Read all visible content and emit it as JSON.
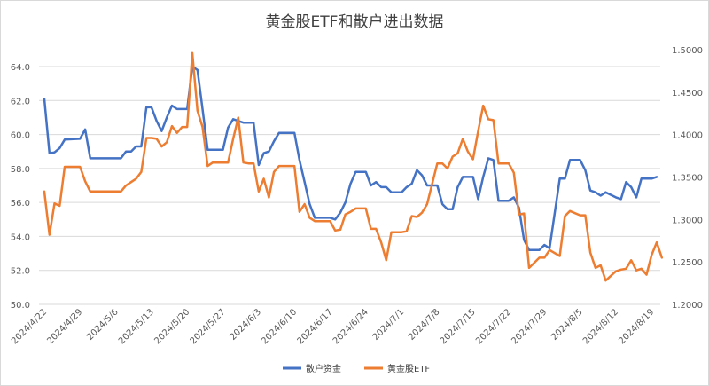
{
  "chart_data": {
    "type": "line",
    "title": "黄金股ETF和散户进出数据",
    "xlabel": "",
    "ylabel": "",
    "y_left": {
      "min": 50.0,
      "max": 64.0,
      "step": 2.0,
      "ticks": [
        "50.0",
        "52.0",
        "54.0",
        "56.0",
        "58.0",
        "60.0",
        "62.0",
        "64.0"
      ]
    },
    "y_right": {
      "min": 1.2,
      "max": 1.5,
      "step": 0.05,
      "ticks": [
        "1.2000",
        "1.2500",
        "1.3000",
        "1.3500",
        "1.4000",
        "1.4500",
        "1.5000"
      ]
    },
    "x_labels": [
      "2024/4/22",
      "2024/4/29",
      "2024/5/6",
      "2024/5/13",
      "2024/5/20",
      "2024/5/27",
      "2024/6/3",
      "2024/6/10",
      "2024/6/17",
      "2024/6/24",
      "2024/7/1",
      "2024/7/8",
      "2024/7/15",
      "2024/7/22",
      "2024/7/29",
      "2024/8/5",
      "2024/8/12",
      "2024/8/19"
    ],
    "x_start": "2024/4/22",
    "x_end": "2024/8/20",
    "grid": true,
    "legend": "bottom",
    "series": [
      {
        "name": "散户资金",
        "axis": "left",
        "color": "#4472C4",
        "points": [
          [
            "2024/4/22",
            62.1
          ],
          [
            "2024/4/23",
            58.9
          ],
          [
            "2024/4/24",
            58.95
          ],
          [
            "2024/4/25",
            59.2
          ],
          [
            "2024/4/26",
            59.7
          ],
          [
            "2024/4/29",
            59.75
          ],
          [
            "2024/4/30",
            60.3
          ],
          [
            "2024/5/1",
            58.6
          ],
          [
            "2024/5/2",
            58.6
          ],
          [
            "2024/5/3",
            58.6
          ],
          [
            "2024/5/6",
            58.6
          ],
          [
            "2024/5/7",
            58.6
          ],
          [
            "2024/5/8",
            59.0
          ],
          [
            "2024/5/9",
            59.0
          ],
          [
            "2024/5/10",
            59.3
          ],
          [
            "2024/5/11",
            59.3
          ],
          [
            "2024/5/12",
            61.6
          ],
          [
            "2024/5/13",
            61.6
          ],
          [
            "2024/5/14",
            60.8
          ],
          [
            "2024/5/15",
            60.2
          ],
          [
            "2024/5/16",
            61.0
          ],
          [
            "2024/5/17",
            61.7
          ],
          [
            "2024/5/18",
            61.5
          ],
          [
            "2024/5/19",
            61.5
          ],
          [
            "2024/5/20",
            61.5
          ],
          [
            "2024/5/21",
            64.0
          ],
          [
            "2024/5/22",
            63.8
          ],
          [
            "2024/5/23",
            61.5
          ],
          [
            "2024/5/24",
            59.1
          ],
          [
            "2024/5/25",
            59.1
          ],
          [
            "2024/5/27",
            59.1
          ],
          [
            "2024/5/28",
            60.4
          ],
          [
            "2024/5/29",
            60.9
          ],
          [
            "2024/5/30",
            60.8
          ],
          [
            "2024/5/31",
            60.7
          ],
          [
            "2024/6/1",
            60.7
          ],
          [
            "2024/6/2",
            60.7
          ],
          [
            "2024/6/3",
            58.2
          ],
          [
            "2024/6/4",
            58.9
          ],
          [
            "2024/6/5",
            59.0
          ],
          [
            "2024/6/6",
            59.6
          ],
          [
            "2024/6/7",
            60.1
          ],
          [
            "2024/6/8",
            60.1
          ],
          [
            "2024/6/9",
            60.1
          ],
          [
            "2024/6/10",
            60.1
          ],
          [
            "2024/6/11",
            58.5
          ],
          [
            "2024/6/12",
            57.2
          ],
          [
            "2024/6/13",
            55.9
          ],
          [
            "2024/6/14",
            55.1
          ],
          [
            "2024/6/15",
            55.1
          ],
          [
            "2024/6/17",
            55.1
          ],
          [
            "2024/6/18",
            55.0
          ],
          [
            "2024/6/19",
            55.4
          ],
          [
            "2024/6/20",
            56.0
          ],
          [
            "2024/6/21",
            57.1
          ],
          [
            "2024/6/22",
            57.8
          ],
          [
            "2024/6/24",
            57.8
          ],
          [
            "2024/6/25",
            57.0
          ],
          [
            "2024/6/26",
            57.2
          ],
          [
            "2024/6/27",
            56.9
          ],
          [
            "2024/6/28",
            56.9
          ],
          [
            "2024/6/29",
            56.6
          ],
          [
            "2024/7/1",
            56.6
          ],
          [
            "2024/7/2",
            56.9
          ],
          [
            "2024/7/3",
            57.1
          ],
          [
            "2024/7/4",
            57.9
          ],
          [
            "2024/7/5",
            57.6
          ],
          [
            "2024/7/6",
            57.0
          ],
          [
            "2024/7/8",
            57.0
          ],
          [
            "2024/7/9",
            55.9
          ],
          [
            "2024/7/10",
            55.6
          ],
          [
            "2024/7/11",
            55.6
          ],
          [
            "2024/7/12",
            56.9
          ],
          [
            "2024/7/13",
            57.5
          ],
          [
            "2024/7/14",
            57.5
          ],
          [
            "2024/7/15",
            57.5
          ],
          [
            "2024/7/16",
            56.2
          ],
          [
            "2024/7/17",
            57.5
          ],
          [
            "2024/7/18",
            58.6
          ],
          [
            "2024/7/19",
            58.5
          ],
          [
            "2024/7/20",
            56.1
          ],
          [
            "2024/7/22",
            56.1
          ],
          [
            "2024/7/23",
            56.3
          ],
          [
            "2024/7/24",
            55.7
          ],
          [
            "2024/7/25",
            53.8
          ],
          [
            "2024/7/26",
            53.2
          ],
          [
            "2024/7/28",
            53.2
          ],
          [
            "2024/7/29",
            53.5
          ],
          [
            "2024/7/30",
            53.3
          ],
          [
            "2024/8/1",
            57.4
          ],
          [
            "2024/8/2",
            57.4
          ],
          [
            "2024/8/3",
            58.5
          ],
          [
            "2024/8/5",
            58.5
          ],
          [
            "2024/8/6",
            57.9
          ],
          [
            "2024/8/7",
            56.7
          ],
          [
            "2024/8/8",
            56.6
          ],
          [
            "2024/8/9",
            56.4
          ],
          [
            "2024/8/10",
            56.6
          ],
          [
            "2024/8/12",
            56.3
          ],
          [
            "2024/8/13",
            56.2
          ],
          [
            "2024/8/14",
            57.2
          ],
          [
            "2024/8/15",
            56.9
          ],
          [
            "2024/8/16",
            56.3
          ],
          [
            "2024/8/17",
            57.4
          ],
          [
            "2024/8/18",
            57.4
          ],
          [
            "2024/8/19",
            57.4
          ],
          [
            "2024/8/20",
            57.5
          ]
        ]
      },
      {
        "name": "黄金股ETF",
        "axis": "right",
        "color": "#ED7D31",
        "points": [
          [
            "2024/4/22",
            1.333
          ],
          [
            "2024/4/23",
            1.282
          ],
          [
            "2024/4/24",
            1.319
          ],
          [
            "2024/4/25",
            1.316
          ],
          [
            "2024/4/26",
            1.362
          ],
          [
            "2024/4/29",
            1.362
          ],
          [
            "2024/4/30",
            1.345
          ],
          [
            "2024/5/1",
            1.333
          ],
          [
            "2024/5/2",
            1.333
          ],
          [
            "2024/5/3",
            1.333
          ],
          [
            "2024/5/6",
            1.333
          ],
          [
            "2024/5/7",
            1.333
          ],
          [
            "2024/5/8",
            1.34
          ],
          [
            "2024/5/9",
            1.344
          ],
          [
            "2024/5/10",
            1.348
          ],
          [
            "2024/5/11",
            1.356
          ],
          [
            "2024/5/12",
            1.396
          ],
          [
            "2024/5/13",
            1.396
          ],
          [
            "2024/5/14",
            1.395
          ],
          [
            "2024/5/15",
            1.386
          ],
          [
            "2024/5/16",
            1.391
          ],
          [
            "2024/5/17",
            1.41
          ],
          [
            "2024/5/18",
            1.402
          ],
          [
            "2024/5/19",
            1.409
          ],
          [
            "2024/5/20",
            1.409
          ],
          [
            "2024/5/21",
            1.496
          ],
          [
            "2024/5/22",
            1.428
          ],
          [
            "2024/5/23",
            1.409
          ],
          [
            "2024/5/24",
            1.363
          ],
          [
            "2024/5/25",
            1.367
          ],
          [
            "2024/5/27",
            1.367
          ],
          [
            "2024/5/28",
            1.367
          ],
          [
            "2024/5/29",
            1.395
          ],
          [
            "2024/5/30",
            1.42
          ],
          [
            "2024/5/31",
            1.367
          ],
          [
            "2024/6/1",
            1.366
          ],
          [
            "2024/6/2",
            1.366
          ],
          [
            "2024/6/3",
            1.333
          ],
          [
            "2024/6/4",
            1.348
          ],
          [
            "2024/6/5",
            1.326
          ],
          [
            "2024/6/6",
            1.356
          ],
          [
            "2024/6/7",
            1.363
          ],
          [
            "2024/6/8",
            1.363
          ],
          [
            "2024/6/9",
            1.363
          ],
          [
            "2024/6/10",
            1.363
          ],
          [
            "2024/6/11",
            1.309
          ],
          [
            "2024/6/12",
            1.318
          ],
          [
            "2024/6/13",
            1.302
          ],
          [
            "2024/6/14",
            1.298
          ],
          [
            "2024/6/15",
            1.298
          ],
          [
            "2024/6/17",
            1.298
          ],
          [
            "2024/6/18",
            1.287
          ],
          [
            "2024/6/19",
            1.288
          ],
          [
            "2024/6/20",
            1.306
          ],
          [
            "2024/6/21",
            1.309
          ],
          [
            "2024/6/22",
            1.313
          ],
          [
            "2024/6/24",
            1.313
          ],
          [
            "2024/6/25",
            1.289
          ],
          [
            "2024/6/26",
            1.289
          ],
          [
            "2024/6/27",
            1.273
          ],
          [
            "2024/6/28",
            1.252
          ],
          [
            "2024/6/29",
            1.285
          ],
          [
            "2024/7/1",
            1.285
          ],
          [
            "2024/7/2",
            1.286
          ],
          [
            "2024/7/3",
            1.304
          ],
          [
            "2024/7/4",
            1.303
          ],
          [
            "2024/7/5",
            1.308
          ],
          [
            "2024/7/6",
            1.318
          ],
          [
            "2024/7/8",
            1.366
          ],
          [
            "2024/7/9",
            1.366
          ],
          [
            "2024/7/10",
            1.36
          ],
          [
            "2024/7/11",
            1.374
          ],
          [
            "2024/7/12",
            1.378
          ],
          [
            "2024/7/13",
            1.395
          ],
          [
            "2024/7/14",
            1.38
          ],
          [
            "2024/7/15",
            1.371
          ],
          [
            "2024/7/16",
            1.404
          ],
          [
            "2024/7/17",
            1.434
          ],
          [
            "2024/7/18",
            1.418
          ],
          [
            "2024/7/19",
            1.417
          ],
          [
            "2024/7/20",
            1.366
          ],
          [
            "2024/7/22",
            1.366
          ],
          [
            "2024/7/23",
            1.355
          ],
          [
            "2024/7/24",
            1.306
          ],
          [
            "2024/7/25",
            1.307
          ],
          [
            "2024/7/26",
            1.243
          ],
          [
            "2024/7/28",
            1.255
          ],
          [
            "2024/7/29",
            1.255
          ],
          [
            "2024/7/30",
            1.264
          ],
          [
            "2024/8/1",
            1.257
          ],
          [
            "2024/8/2",
            1.304
          ],
          [
            "2024/8/3",
            1.31
          ],
          [
            "2024/8/5",
            1.305
          ],
          [
            "2024/8/6",
            1.305
          ],
          [
            "2024/8/7",
            1.261
          ],
          [
            "2024/8/8",
            1.243
          ],
          [
            "2024/8/9",
            1.246
          ],
          [
            "2024/8/10",
            1.228
          ],
          [
            "2024/8/12",
            1.239
          ],
          [
            "2024/8/13",
            1.241
          ],
          [
            "2024/8/14",
            1.242
          ],
          [
            "2024/8/15",
            1.252
          ],
          [
            "2024/8/16",
            1.24
          ],
          [
            "2024/8/17",
            1.242
          ],
          [
            "2024/8/18",
            1.235
          ],
          [
            "2024/8/19",
            1.258
          ],
          [
            "2024/8/20",
            1.273
          ],
          [
            "2024/8/21",
            1.255
          ]
        ]
      }
    ]
  }
}
